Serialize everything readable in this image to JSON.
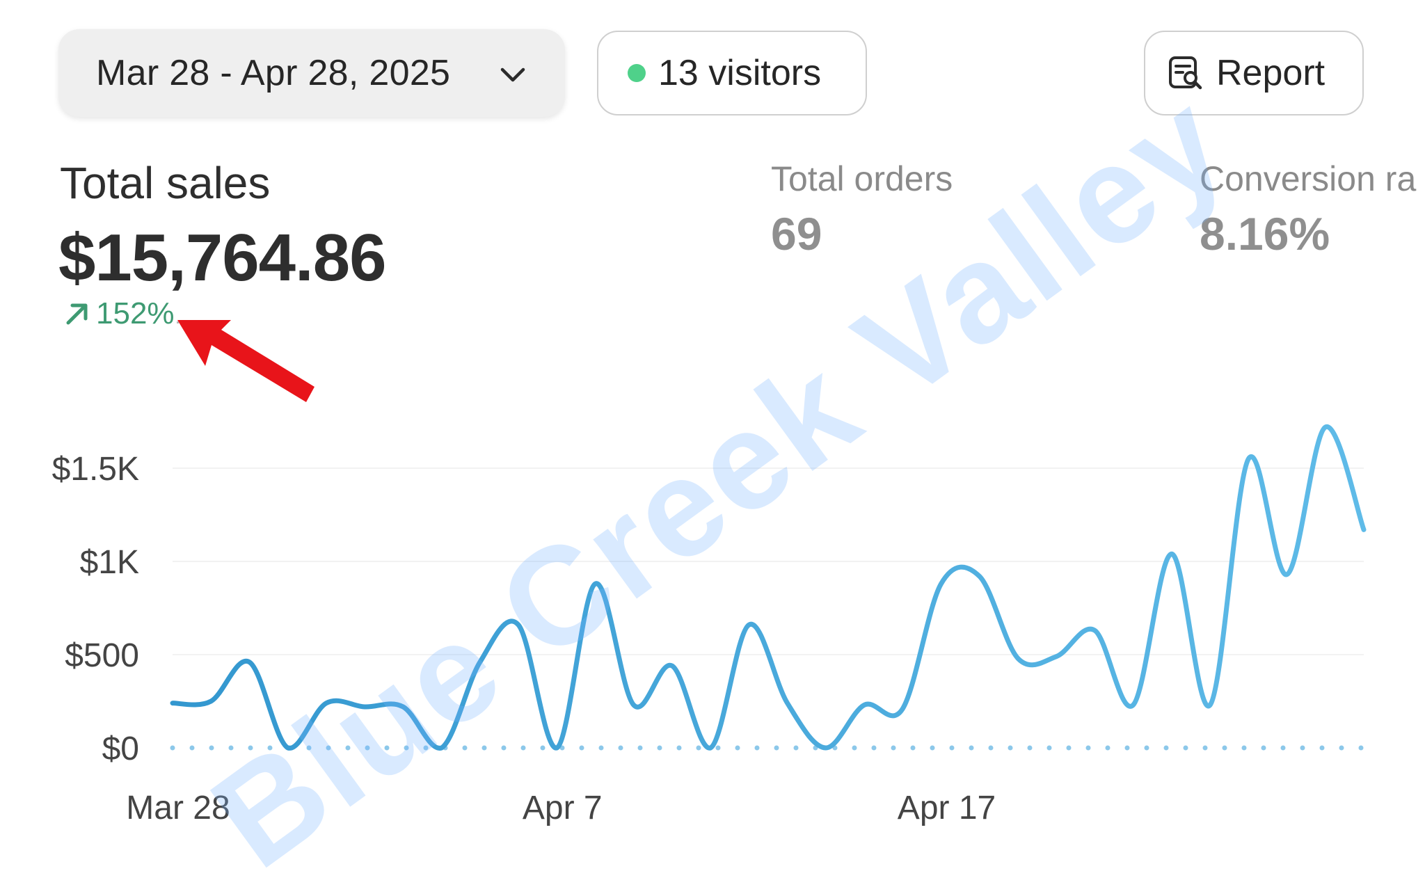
{
  "header": {
    "date_range": "Mar 28 - Apr 28, 2025",
    "visitors": "13 visitors",
    "report_label": "Report"
  },
  "metrics": {
    "total_sales": {
      "title": "Total sales",
      "value": "$15,764.86",
      "change": "152%",
      "change_direction": "up"
    },
    "total_orders": {
      "title": "Total orders",
      "value": "69"
    },
    "conversion_rate": {
      "title": "Conversion ra",
      "value": "8.16%"
    }
  },
  "watermark": "Blue Creek Valley",
  "colors": {
    "line": "#3ba3d8",
    "positive": "#3e9a72",
    "live_dot": "#4fd18a",
    "annotation": "#e8141a",
    "baseline_dots": "#8cc8ea"
  },
  "icons": {
    "date_picker": "chevron-down-icon",
    "visitors": "live-dot",
    "report": "report-search-icon",
    "change": "arrow-up-right-icon"
  },
  "chart_data": {
    "type": "line",
    "title": "",
    "xlabel": "",
    "ylabel": "",
    "ylim": [
      0,
      1500
    ],
    "y_ticks": [
      {
        "value": 0,
        "label": "$0"
      },
      {
        "value": 500,
        "label": "$500"
      },
      {
        "value": 1000,
        "label": "$1K"
      },
      {
        "value": 1500,
        "label": "$1.5K"
      }
    ],
    "x_ticks": [
      {
        "index": 0,
        "label": "Mar 28"
      },
      {
        "index": 10,
        "label": "Apr 7"
      },
      {
        "index": 20,
        "label": "Apr 17"
      }
    ],
    "x": [
      "Mar 28",
      "Mar 29",
      "Mar 30",
      "Mar 31",
      "Apr 1",
      "Apr 2",
      "Apr 3",
      "Apr 4",
      "Apr 5",
      "Apr 6",
      "Apr 7",
      "Apr 8",
      "Apr 9",
      "Apr 10",
      "Apr 11",
      "Apr 12",
      "Apr 13",
      "Apr 14",
      "Apr 15",
      "Apr 16",
      "Apr 17",
      "Apr 18",
      "Apr 19",
      "Apr 20",
      "Apr 21",
      "Apr 22",
      "Apr 23",
      "Apr 24",
      "Apr 25",
      "Apr 26",
      "Apr 27",
      "Apr 28"
    ],
    "series": [
      {
        "values": [
          240,
          250,
          460,
          0,
          240,
          220,
          220,
          0,
          460,
          660,
          0,
          880,
          230,
          440,
          0,
          660,
          240,
          0,
          230,
          210,
          880,
          920,
          480,
          490,
          630,
          230,
          1040,
          230,
          1550,
          930,
          1720,
          1170
        ]
      }
    ],
    "grid": true,
    "legend": "none",
    "baseline_dotted": true
  }
}
